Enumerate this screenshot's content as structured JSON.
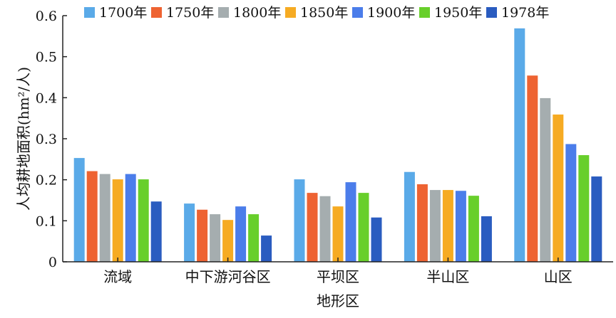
{
  "chart_data": {
    "type": "bar",
    "title": "",
    "xlabel": "地形区",
    "ylabel": "人均耕地面积(hm²/人)",
    "ylim": [
      0,
      0.6
    ],
    "yticks": [
      "0",
      "0.1",
      "0.2",
      "0.3",
      "0.4",
      "0.5",
      "0.6"
    ],
    "grid": false,
    "legend_position": "top",
    "categories": [
      "流域",
      "中下游河谷区",
      "平坝区",
      "半山区",
      "山区"
    ],
    "series": [
      {
        "name": "1700年",
        "color": "#5AAAE8",
        "values": [
          0.253,
          0.142,
          0.201,
          0.219,
          0.569
        ]
      },
      {
        "name": "1750年",
        "color": "#EE6332",
        "values": [
          0.221,
          0.127,
          0.168,
          0.189,
          0.454
        ]
      },
      {
        "name": "1800年",
        "color": "#A5ADAF",
        "values": [
          0.214,
          0.116,
          0.16,
          0.175,
          0.399
        ]
      },
      {
        "name": "1850年",
        "color": "#F6AB23",
        "values": [
          0.201,
          0.102,
          0.135,
          0.175,
          0.359
        ]
      },
      {
        "name": "1900年",
        "color": "#4B7DEA",
        "values": [
          0.214,
          0.135,
          0.194,
          0.173,
          0.287
        ]
      },
      {
        "name": "1950年",
        "color": "#68CF2B",
        "values": [
          0.201,
          0.116,
          0.168,
          0.161,
          0.26
        ]
      },
      {
        "name": "1978年",
        "color": "#2A5CC0",
        "values": [
          0.147,
          0.064,
          0.108,
          0.111,
          0.208
        ]
      }
    ]
  }
}
